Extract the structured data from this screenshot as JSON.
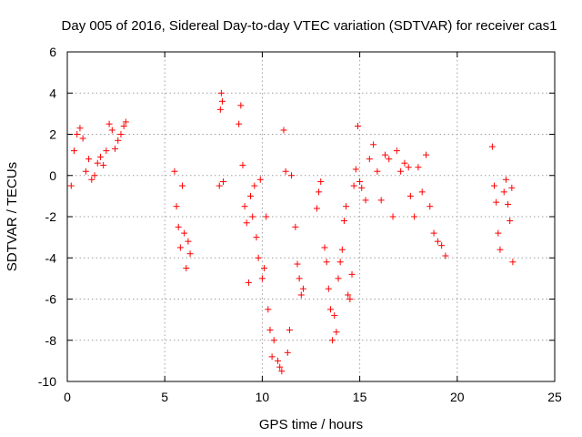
{
  "chart_data": {
    "type": "scatter",
    "title": "Day 005 of 2016, Sidereal Day-to-day VTEC variation (SDTVAR) for receiver cas1",
    "xlabel": "GPS time / hours",
    "ylabel": "SDTVAR / TECUs",
    "xlim": [
      0,
      25
    ],
    "ylim": [
      -10,
      6
    ],
    "xticks": [
      0,
      5,
      10,
      15,
      20,
      25
    ],
    "yticks": [
      -10,
      -8,
      -6,
      -4,
      -2,
      0,
      2,
      4,
      6
    ],
    "grid": true,
    "marker": "+",
    "series_color": "#ff0000",
    "series": [
      {
        "name": "SDTVAR",
        "segments": [
          {
            "x": [
              0.2,
              0.35,
              0.5,
              0.65,
              0.8,
              0.95,
              1.1,
              1.25,
              1.4,
              1.55,
              1.7,
              1.85,
              2.0,
              2.15,
              2.3,
              2.45,
              2.6,
              2.75,
              2.9,
              3.0
            ],
            "y": [
              -0.5,
              1.2,
              2.0,
              2.3,
              1.8,
              0.2,
              0.8,
              -0.2,
              0.0,
              0.6,
              0.9,
              0.5,
              1.2,
              2.5,
              2.2,
              1.3,
              1.7,
              2.0,
              2.4,
              2.6
            ]
          },
          {
            "x": [
              5.5,
              5.6,
              5.7,
              5.8,
              5.9,
              6.0,
              6.1,
              6.2,
              6.3
            ],
            "y": [
              0.2,
              -1.5,
              -2.5,
              -3.5,
              -0.5,
              -2.8,
              -4.5,
              -3.2,
              -3.8
            ]
          },
          {
            "x": [
              7.8,
              7.85,
              7.9,
              7.95,
              8.0
            ],
            "y": [
              -0.5,
              3.2,
              4.0,
              3.6,
              -0.3
            ]
          },
          {
            "x": [
              8.8,
              8.9,
              9.0,
              9.1,
              9.2,
              9.3,
              9.4,
              9.5,
              9.6,
              9.7,
              9.8,
              9.9,
              10.0,
              10.1,
              10.2,
              10.3,
              10.4,
              10.5,
              10.6
            ],
            "y": [
              2.5,
              3.4,
              0.5,
              -1.5,
              -2.3,
              -5.2,
              -1.0,
              -2.0,
              -0.5,
              -3.0,
              -4.0,
              -0.2,
              -5.0,
              -4.5,
              -2.0,
              -6.5,
              -7.5,
              -8.8,
              -8.0
            ]
          },
          {
            "x": [
              10.8,
              10.9,
              11.0,
              11.1,
              11.2,
              11.3,
              11.4,
              11.5
            ],
            "y": [
              -9.0,
              -9.3,
              -9.5,
              2.2,
              0.2,
              -8.6,
              -7.5,
              0.0
            ]
          },
          {
            "x": [
              11.7,
              11.8,
              11.9,
              12.0,
              12.1
            ],
            "y": [
              -2.5,
              -4.3,
              -5.0,
              -5.8,
              -5.5
            ]
          },
          {
            "x": [
              12.8,
              12.9,
              13.0
            ],
            "y": [
              -1.6,
              -0.8,
              -0.3
            ]
          },
          {
            "x": [
              13.2,
              13.3,
              13.4,
              13.5,
              13.6,
              13.7,
              13.8,
              13.9,
              14.0,
              14.1,
              14.2,
              14.3,
              14.4,
              14.5,
              14.6,
              14.7,
              14.8,
              14.9,
              15.0
            ],
            "y": [
              -3.5,
              -4.2,
              -5.5,
              -6.5,
              -8.0,
              -6.8,
              -7.6,
              -5.0,
              -4.2,
              -3.6,
              -2.2,
              -1.5,
              -5.8,
              -6.0,
              -4.8,
              -0.5,
              0.3,
              2.4,
              -0.3
            ]
          },
          {
            "x": [
              15.1,
              15.3,
              15.5,
              15.7,
              15.9,
              16.1,
              16.3,
              16.5,
              16.7,
              16.9,
              17.1,
              17.3,
              17.5
            ],
            "y": [
              -0.6,
              -1.2,
              0.8,
              1.5,
              0.2,
              -1.2,
              1.0,
              0.8,
              -2.0,
              1.2,
              0.2,
              0.6,
              0.4
            ]
          },
          {
            "x": [
              17.6,
              17.8,
              18.0,
              18.2,
              18.4,
              18.6,
              18.8,
              19.0,
              19.2,
              19.4
            ],
            "y": [
              -1.0,
              -2.0,
              0.4,
              -0.8,
              1.0,
              -1.5,
              -2.8,
              -3.2,
              -3.4,
              -3.9
            ]
          },
          {
            "x": [
              21.8,
              21.9,
              22.0,
              22.1,
              22.2
            ],
            "y": [
              1.4,
              -0.5,
              -1.3,
              -2.8,
              -3.6
            ]
          },
          {
            "x": [
              22.4,
              22.5,
              22.6,
              22.7,
              22.8,
              22.85
            ],
            "y": [
              -0.8,
              -0.2,
              -1.4,
              -2.2,
              -0.6,
              -4.2
            ]
          }
        ]
      }
    ]
  }
}
